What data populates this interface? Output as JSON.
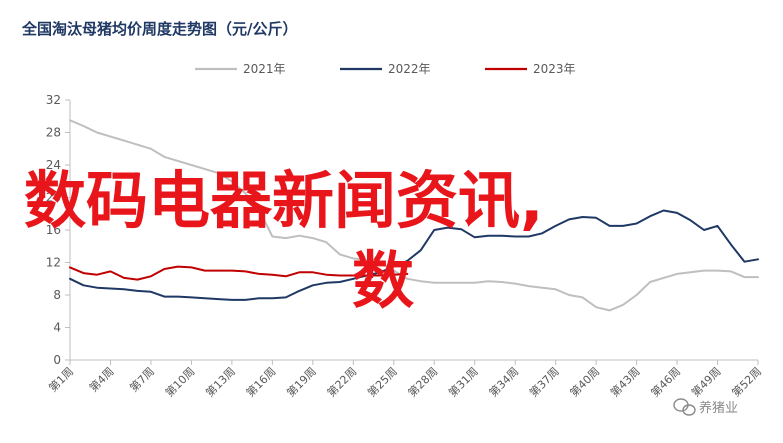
{
  "chart_data": {
    "type": "line",
    "title": "全国淘汰母猪均价周度走势图（元/公斤）",
    "xlabel": "",
    "ylabel": "",
    "ylim": [
      0,
      32
    ],
    "yticks": [
      0,
      4,
      8,
      12,
      16,
      20,
      24,
      28,
      32
    ],
    "x_tick_labels": [
      "第1周",
      "第4周",
      "第7周",
      "第10周",
      "第13周",
      "第16周",
      "第19周",
      "第22周",
      "第25周",
      "第28周",
      "第31周",
      "第34周",
      "第37周",
      "第40周",
      "第43周",
      "第46周",
      "第49周",
      "第52周"
    ],
    "x_tick_weeks": [
      1,
      4,
      7,
      10,
      13,
      16,
      19,
      22,
      25,
      28,
      31,
      34,
      37,
      40,
      43,
      46,
      49,
      52
    ],
    "grid": false,
    "legend_position": "top",
    "series": [
      {
        "name": "2021年",
        "color": "#bfbfbf",
        "weeks": [
          1,
          2,
          3,
          4,
          5,
          6,
          7,
          8,
          9,
          10,
          11,
          12,
          13,
          14,
          15,
          16,
          17,
          18,
          19,
          20,
          21,
          22,
          23,
          24,
          25,
          26,
          27,
          28,
          29,
          30,
          31,
          32,
          33,
          34,
          35,
          36,
          37,
          38,
          39,
          40,
          41,
          42,
          43,
          44,
          45,
          46,
          47,
          48,
          49,
          50,
          51,
          52
        ],
        "values": [
          29.5,
          28.8,
          28.0,
          27.5,
          27.0,
          26.5,
          26.0,
          25.0,
          24.5,
          24.0,
          23.5,
          23.0,
          22.0,
          20.5,
          18.5,
          15.2,
          15.0,
          15.3,
          15.0,
          14.5,
          13.0,
          12.5,
          12.3,
          12.0,
          11.0,
          10.0,
          9.7,
          9.5,
          9.5,
          9.5,
          9.5,
          9.7,
          9.6,
          9.4,
          9.1,
          8.9,
          8.7,
          8.0,
          7.7,
          6.5,
          6.1,
          6.8,
          8.0,
          9.6,
          10.1,
          10.6,
          10.8,
          11.0,
          11.0,
          10.9,
          10.2,
          10.2
        ]
      },
      {
        "name": "2022年",
        "color": "#1f3864",
        "weeks": [
          1,
          2,
          3,
          4,
          5,
          6,
          7,
          8,
          9,
          10,
          11,
          12,
          13,
          14,
          15,
          16,
          17,
          18,
          19,
          20,
          21,
          22,
          23,
          24,
          25,
          26,
          27,
          28,
          29,
          30,
          31,
          32,
          33,
          34,
          35,
          36,
          37,
          38,
          39,
          40,
          41,
          42,
          43,
          44,
          45,
          46,
          47,
          48,
          49,
          50,
          51,
          52
        ],
        "values": [
          10.0,
          9.2,
          8.9,
          8.8,
          8.7,
          8.5,
          8.4,
          7.8,
          7.8,
          7.7,
          7.6,
          7.5,
          7.4,
          7.4,
          7.6,
          7.6,
          7.7,
          8.5,
          9.2,
          9.5,
          9.6,
          10.0,
          10.4,
          10.8,
          11.5,
          12.2,
          13.5,
          16.0,
          16.3,
          16.1,
          15.1,
          15.3,
          15.3,
          15.2,
          15.2,
          15.6,
          16.5,
          17.3,
          17.6,
          17.5,
          16.5,
          16.5,
          16.8,
          17.7,
          18.4,
          18.1,
          17.2,
          16.0,
          16.5,
          14.2,
          12.1,
          12.4
        ]
      },
      {
        "name": "2023年",
        "color": "#c00000",
        "weeks": [
          1,
          2,
          3,
          4,
          5,
          6,
          7,
          8,
          9,
          10,
          11,
          12,
          13,
          14,
          15,
          16,
          17,
          18,
          19,
          20,
          21,
          22,
          23,
          24,
          25,
          26
        ],
        "values": [
          11.4,
          10.7,
          10.5,
          10.9,
          10.1,
          9.9,
          10.3,
          11.2,
          11.5,
          11.4,
          11.0,
          11.0,
          11.0,
          10.9,
          10.6,
          10.5,
          10.3,
          10.8,
          10.8,
          10.5,
          10.4,
          10.4,
          10.4,
          10.4,
          10.5,
          10.6
        ]
      }
    ]
  },
  "overlay_text": {
    "line1": "数码电器新闻资讯,",
    "line2": "数"
  },
  "watermark": {
    "icon": "wechat-icon",
    "text": "养猪业"
  }
}
